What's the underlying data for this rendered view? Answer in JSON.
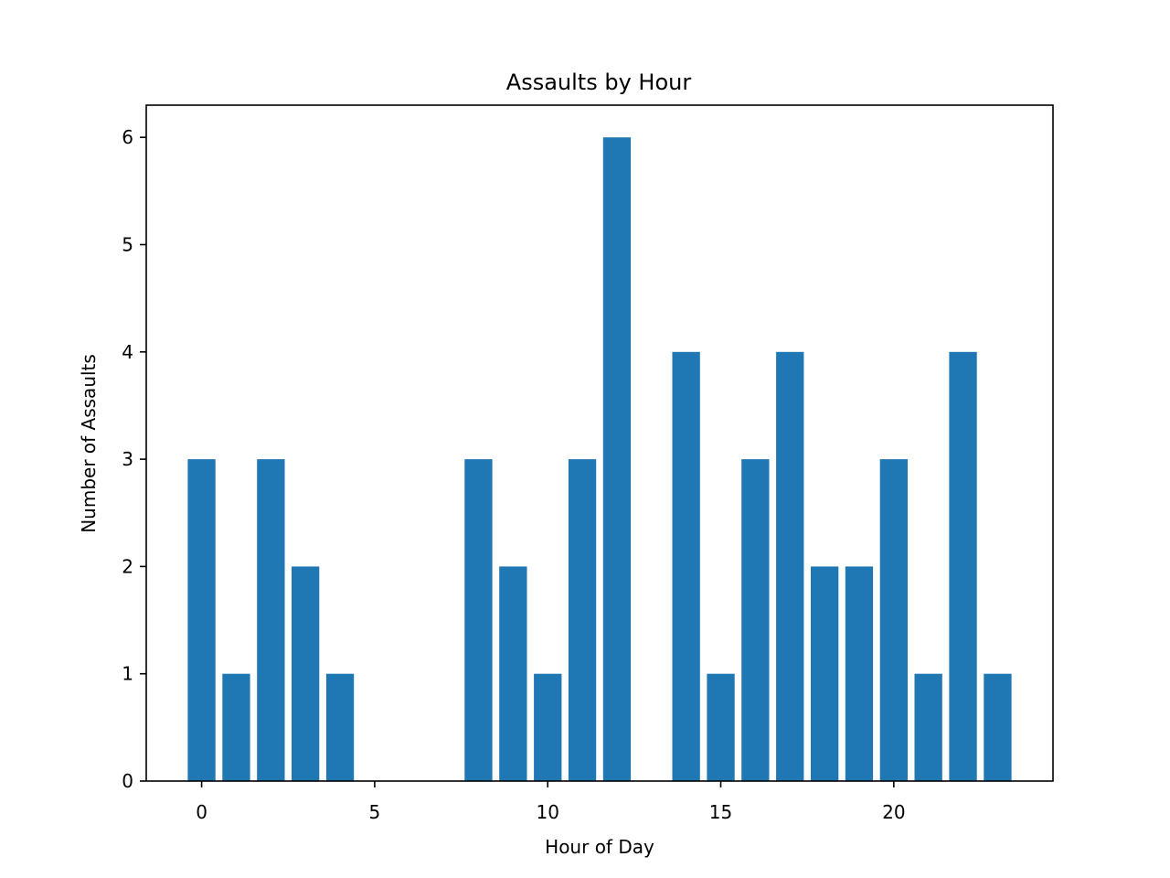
{
  "chart_data": {
    "type": "bar",
    "title": "Assaults by Hour",
    "xlabel": "Hour of Day",
    "ylabel": "Number of Assaults",
    "x": [
      0,
      1,
      2,
      3,
      4,
      5,
      6,
      7,
      8,
      9,
      10,
      11,
      12,
      13,
      14,
      15,
      16,
      17,
      18,
      19,
      20,
      21,
      22,
      23
    ],
    "values": [
      3,
      1,
      3,
      2,
      1,
      0,
      0,
      0,
      3,
      2,
      1,
      3,
      6,
      0,
      4,
      1,
      3,
      4,
      2,
      2,
      3,
      1,
      4,
      1
    ],
    "xlim": [
      -1.6,
      24.6
    ],
    "ylim": [
      0,
      6.3
    ],
    "xticks": [
      0,
      5,
      10,
      15,
      20
    ],
    "yticks": [
      0,
      1,
      2,
      3,
      4,
      5,
      6
    ],
    "bar_width": 0.8,
    "bar_color": "#1f77b4",
    "grid": false,
    "legend": "none"
  }
}
